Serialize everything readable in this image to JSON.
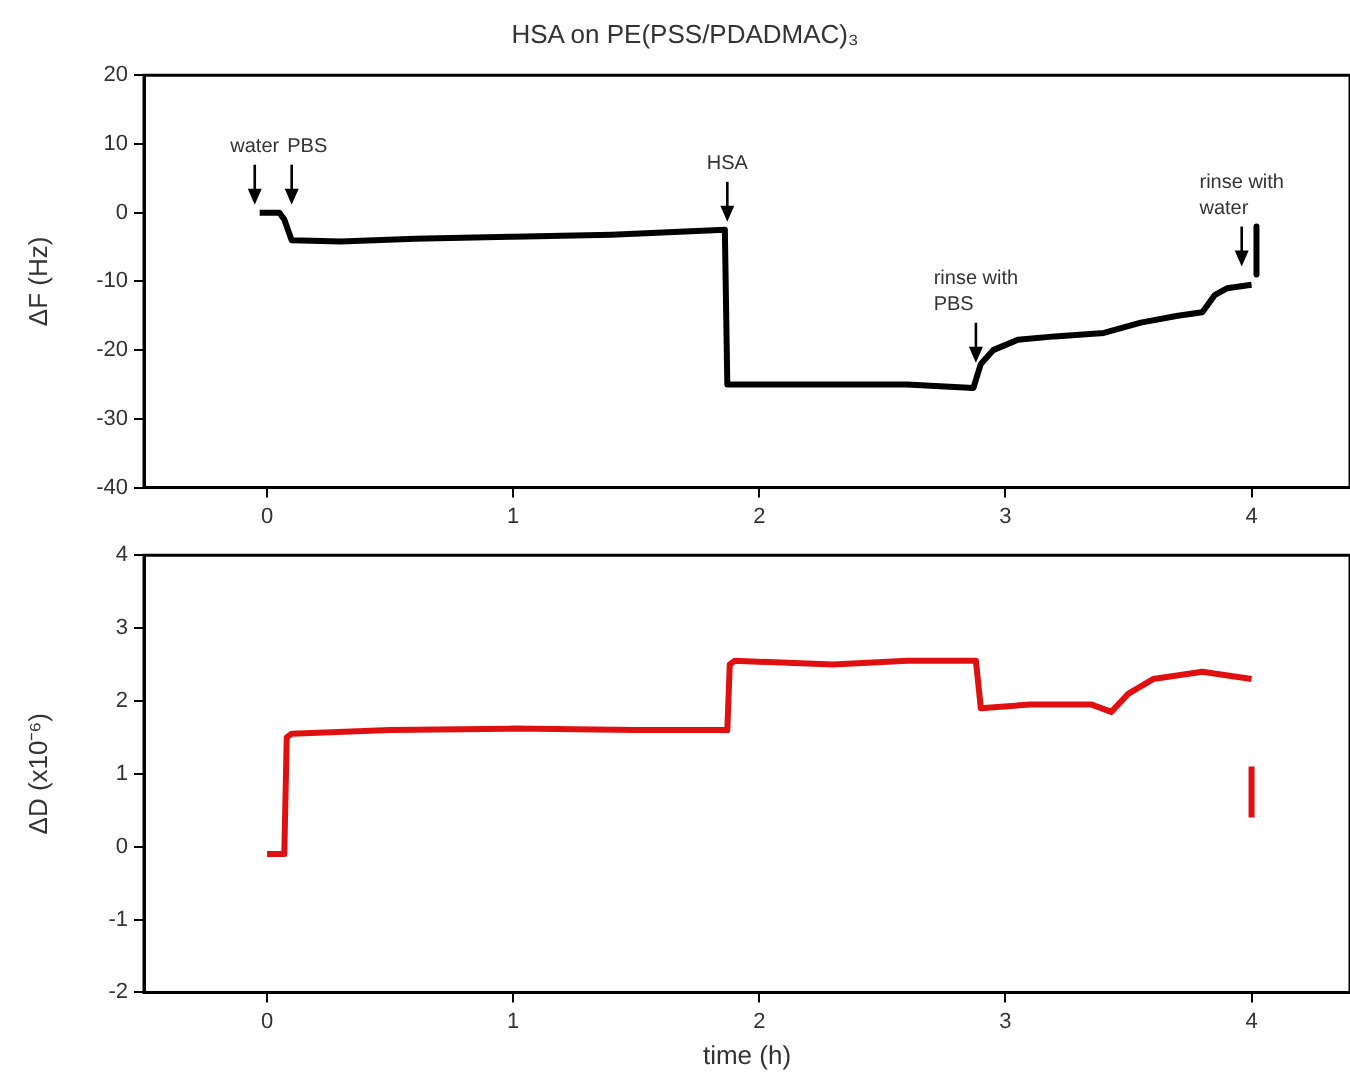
{
  "chart_data": [
    {
      "type": "line",
      "title": "HSA on PE(PSS/PDADMAC)₃",
      "ylabel": "ΔF (Hz)",
      "x": [
        -0.03,
        0.05,
        0.07,
        0.1,
        0.3,
        0.6,
        1.0,
        1.4,
        1.86,
        1.87,
        1.89,
        2.2,
        2.6,
        2.87,
        2.9,
        2.95,
        3.05,
        3.2,
        3.4,
        3.55,
        3.7,
        3.8,
        3.85,
        3.9,
        4.0,
        null,
        4.02,
        4.02
      ],
      "series": [
        {
          "color": "#000000",
          "values": [
            0,
            0,
            -1,
            -4,
            -4.2,
            -3.8,
            -3.5,
            -3.2,
            -2.5,
            -25,
            -25,
            -25,
            -25,
            -25.5,
            -22,
            -20,
            -18.5,
            -18,
            -17.5,
            -16,
            -15,
            -14.5,
            -12,
            -11,
            -10.5,
            null,
            -2,
            -9
          ]
        }
      ],
      "xlim": [
        -0.5,
        4.4
      ],
      "xticks": [
        0,
        1,
        2,
        3,
        4
      ],
      "ylim": [
        -40,
        20
      ],
      "yticks": [
        -40,
        -30,
        -20,
        -10,
        0,
        10,
        20
      ],
      "grid": false,
      "legend": false,
      "marker": "none",
      "annotations": [
        {
          "text": "water",
          "x": -0.05,
          "y": 0
        },
        {
          "text": "PBS",
          "x": 0.1,
          "y": 0
        },
        {
          "text": "HSA",
          "x": 1.87,
          "y": -2.5
        },
        {
          "text": "rinse with PBS",
          "x": 2.88,
          "y": -23
        },
        {
          "text": "rinse with water",
          "x": 3.96,
          "y": -9
        }
      ]
    },
    {
      "type": "line",
      "xlabel": "time (h)",
      "ylabel": "ΔD (x10⁻⁶)",
      "x": [
        0,
        0.07,
        0.08,
        0.1,
        0.5,
        1.0,
        1.5,
        1.87,
        1.88,
        1.9,
        2.3,
        2.6,
        2.88,
        2.9,
        3.1,
        3.35,
        3.43,
        3.5,
        3.6,
        3.8,
        4.0,
        null,
        4.0,
        4.0
      ],
      "series": [
        {
          "color": "#e01010",
          "values": [
            -0.1,
            -0.1,
            1.5,
            1.55,
            1.6,
            1.62,
            1.6,
            1.6,
            2.5,
            2.55,
            2.5,
            2.55,
            2.55,
            1.9,
            1.95,
            1.95,
            1.85,
            2.1,
            2.3,
            2.4,
            2.3,
            null,
            0.4,
            1.1
          ]
        }
      ],
      "xlim": [
        -0.5,
        4.4
      ],
      "xticks": [
        0,
        1,
        2,
        3,
        4
      ],
      "ylim": [
        -2,
        4
      ],
      "yticks": [
        -2,
        -1,
        0,
        1,
        2,
        3,
        4
      ],
      "grid": false,
      "legend": false,
      "marker": "none"
    }
  ]
}
